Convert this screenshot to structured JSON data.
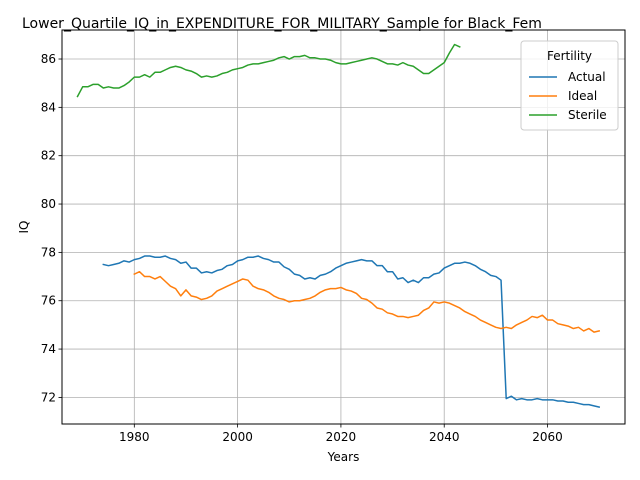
{
  "chart_data": {
    "type": "line",
    "title": "Lower_Quartile_IQ_in_EXPENDITURE_FOR_MILITARY_Sample for Black_Fem",
    "xlabel": "Years",
    "ylabel": "IQ",
    "xlim": [
      1966,
      2075
    ],
    "ylim": [
      70.9,
      87.2
    ],
    "xticks": [
      1980,
      2000,
      2020,
      2040,
      2060
    ],
    "yticks": [
      72,
      74,
      76,
      78,
      80,
      82,
      84,
      86
    ],
    "grid": true,
    "legend": {
      "title": "Fertility",
      "placement": "top-right"
    },
    "series": [
      {
        "name": "Actual",
        "color": "#1f77b4",
        "x": [
          1974,
          1975,
          1976,
          1977,
          1978,
          1979,
          1980,
          1981,
          1982,
          1983,
          1984,
          1985,
          1986,
          1987,
          1988,
          1989,
          1990,
          1991,
          1992,
          1993,
          1994,
          1995,
          1996,
          1997,
          1998,
          1999,
          2000,
          2001,
          2002,
          2003,
          2004,
          2005,
          2006,
          2007,
          2008,
          2009,
          2010,
          2011,
          2012,
          2013,
          2014,
          2015,
          2016,
          2017,
          2018,
          2019,
          2020,
          2021,
          2022,
          2023,
          2024,
          2025,
          2026,
          2027,
          2028,
          2029,
          2030,
          2031,
          2032,
          2033,
          2034,
          2035,
          2036,
          2037,
          2038,
          2039,
          2040,
          2041,
          2042,
          2043,
          2044,
          2045,
          2046,
          2047,
          2048,
          2049,
          2050,
          2051,
          2052,
          2053,
          2054,
          2055,
          2056,
          2057,
          2058,
          2059,
          2060,
          2061,
          2062,
          2063,
          2064,
          2065,
          2066,
          2067,
          2068,
          2069,
          2070
        ],
        "values": [
          77.5,
          77.45,
          77.5,
          77.55,
          77.65,
          77.6,
          77.7,
          77.75,
          77.85,
          77.85,
          77.8,
          77.8,
          77.85,
          77.75,
          77.7,
          77.55,
          77.6,
          77.35,
          77.35,
          77.15,
          77.2,
          77.15,
          77.25,
          77.3,
          77.45,
          77.5,
          77.65,
          77.7,
          77.8,
          77.8,
          77.85,
          77.75,
          77.7,
          77.6,
          77.6,
          77.4,
          77.3,
          77.1,
          77.05,
          76.9,
          76.95,
          76.9,
          77.05,
          77.1,
          77.2,
          77.35,
          77.45,
          77.55,
          77.6,
          77.65,
          77.7,
          77.65,
          77.65,
          77.45,
          77.45,
          77.2,
          77.2,
          76.9,
          76.95,
          76.75,
          76.85,
          76.75,
          76.95,
          76.95,
          77.1,
          77.15,
          77.35,
          77.45,
          77.55,
          77.55,
          77.6,
          77.55,
          77.45,
          77.3,
          77.2,
          77.05,
          77.0,
          76.85,
          71.95,
          72.05,
          71.9,
          71.95,
          71.9,
          71.9,
          71.95,
          71.9,
          71.9,
          71.9,
          71.85,
          71.85,
          71.8,
          71.8,
          71.75,
          71.7,
          71.7,
          71.65,
          71.6
        ]
      },
      {
        "name": "Ideal",
        "color": "#ff7f0e",
        "x": [
          1980,
          1981,
          1982,
          1983,
          1984,
          1985,
          1986,
          1987,
          1988,
          1989,
          1990,
          1991,
          1992,
          1993,
          1994,
          1995,
          1996,
          1997,
          1998,
          1999,
          2000,
          2001,
          2002,
          2003,
          2004,
          2005,
          2006,
          2007,
          2008,
          2009,
          2010,
          2011,
          2012,
          2013,
          2014,
          2015,
          2016,
          2017,
          2018,
          2019,
          2020,
          2021,
          2022,
          2023,
          2024,
          2025,
          2026,
          2027,
          2028,
          2029,
          2030,
          2031,
          2032,
          2033,
          2034,
          2035,
          2036,
          2037,
          2038,
          2039,
          2040,
          2041,
          2042,
          2043,
          2044,
          2045,
          2046,
          2047,
          2048,
          2049,
          2050,
          2051,
          2052,
          2053,
          2054,
          2055,
          2056,
          2057,
          2058,
          2059,
          2060,
          2061,
          2062,
          2063,
          2064,
          2065,
          2066,
          2067,
          2068,
          2069,
          2070
        ],
        "values": [
          77.1,
          77.2,
          77.0,
          77.0,
          76.9,
          77.0,
          76.8,
          76.6,
          76.5,
          76.2,
          76.45,
          76.2,
          76.15,
          76.05,
          76.1,
          76.2,
          76.4,
          76.5,
          76.6,
          76.7,
          76.8,
          76.9,
          76.85,
          76.6,
          76.5,
          76.45,
          76.35,
          76.2,
          76.1,
          76.05,
          75.95,
          76.0,
          76.0,
          76.05,
          76.1,
          76.2,
          76.35,
          76.45,
          76.5,
          76.5,
          76.55,
          76.45,
          76.4,
          76.3,
          76.1,
          76.05,
          75.9,
          75.7,
          75.65,
          75.5,
          75.45,
          75.35,
          75.35,
          75.3,
          75.35,
          75.4,
          75.6,
          75.7,
          75.95,
          75.9,
          75.95,
          75.9,
          75.8,
          75.7,
          75.55,
          75.45,
          75.35,
          75.2,
          75.1,
          75.0,
          74.9,
          74.85,
          74.9,
          74.85,
          75.0,
          75.1,
          75.2,
          75.35,
          75.3,
          75.4,
          75.2,
          75.2,
          75.05,
          75.0,
          74.95,
          74.85,
          74.9,
          74.75,
          74.85,
          74.7,
          74.75
        ]
      },
      {
        "name": "Sterile",
        "color": "#2ca02c",
        "x": [
          1969,
          1970,
          1971,
          1972,
          1973,
          1974,
          1975,
          1976,
          1977,
          1978,
          1979,
          1980,
          1981,
          1982,
          1983,
          1984,
          1985,
          1986,
          1987,
          1988,
          1989,
          1990,
          1991,
          1992,
          1993,
          1994,
          1995,
          1996,
          1997,
          1998,
          1999,
          2000,
          2001,
          2002,
          2003,
          2004,
          2005,
          2006,
          2007,
          2008,
          2009,
          2010,
          2011,
          2012,
          2013,
          2014,
          2015,
          2016,
          2017,
          2018,
          2019,
          2020,
          2021,
          2022,
          2023,
          2024,
          2025,
          2026,
          2027,
          2028,
          2029,
          2030,
          2031,
          2032,
          2033,
          2034,
          2035,
          2036,
          2037,
          2038,
          2039,
          2040,
          2041,
          2042,
          2043
        ],
        "values": [
          84.45,
          84.85,
          84.85,
          84.95,
          84.95,
          84.8,
          84.85,
          84.8,
          84.8,
          84.9,
          85.05,
          85.25,
          85.25,
          85.35,
          85.25,
          85.45,
          85.45,
          85.55,
          85.65,
          85.7,
          85.65,
          85.55,
          85.5,
          85.4,
          85.25,
          85.3,
          85.25,
          85.3,
          85.4,
          85.45,
          85.55,
          85.6,
          85.65,
          85.75,
          85.8,
          85.8,
          85.85,
          85.9,
          85.95,
          86.05,
          86.1,
          86.0,
          86.1,
          86.1,
          86.15,
          86.05,
          86.05,
          86.0,
          86.0,
          85.95,
          85.85,
          85.8,
          85.8,
          85.85,
          85.9,
          85.95,
          86.0,
          86.05,
          86.0,
          85.9,
          85.8,
          85.8,
          85.75,
          85.85,
          85.75,
          85.7,
          85.55,
          85.4,
          85.4,
          85.55,
          85.7,
          85.85,
          86.25,
          86.6,
          86.5
        ]
      }
    ]
  }
}
